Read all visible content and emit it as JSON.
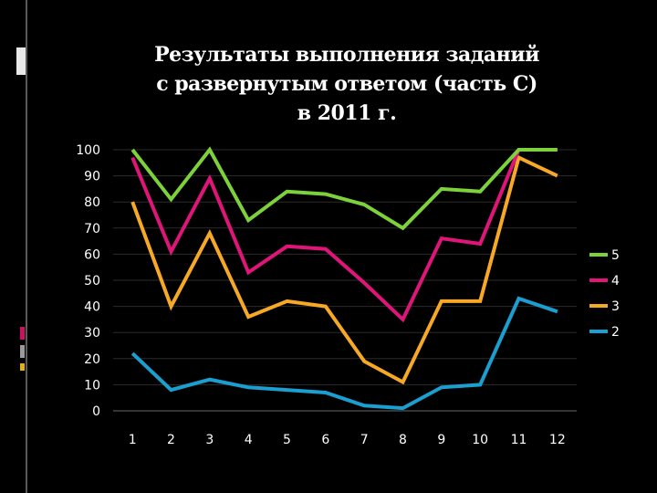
{
  "slide": {
    "title_lines": [
      "Результаты выполнения заданий",
      "с развернутым ответом (часть С)",
      "в 2011 г."
    ]
  },
  "chart_data": {
    "type": "line",
    "x": [
      "1",
      "2",
      "3",
      "4",
      "5",
      "6",
      "7",
      "8",
      "9",
      "10",
      "11",
      "12"
    ],
    "ylim": [
      0,
      100
    ],
    "yticks": [
      0,
      10,
      20,
      30,
      40,
      50,
      60,
      70,
      80,
      90,
      100
    ],
    "grid": true,
    "legend_position": "right",
    "series": [
      {
        "name": "5",
        "color": "#7dd23b",
        "values": [
          100,
          81,
          100,
          73,
          84,
          83,
          79,
          70,
          85,
          84,
          100,
          100
        ]
      },
      {
        "name": "4",
        "color": "#e0157a",
        "values": [
          97,
          61,
          89,
          53,
          63,
          62,
          49,
          35,
          66,
          64,
          100,
          100
        ]
      },
      {
        "name": "3",
        "color": "#f7a825",
        "values": [
          80,
          40,
          68,
          36,
          42,
          40,
          19,
          11,
          42,
          42,
          97,
          90
        ]
      },
      {
        "name": "2",
        "color": "#1a9fd0",
        "values": [
          22,
          8,
          12,
          9,
          8,
          7,
          2,
          1,
          9,
          10,
          43,
          38
        ]
      }
    ]
  }
}
